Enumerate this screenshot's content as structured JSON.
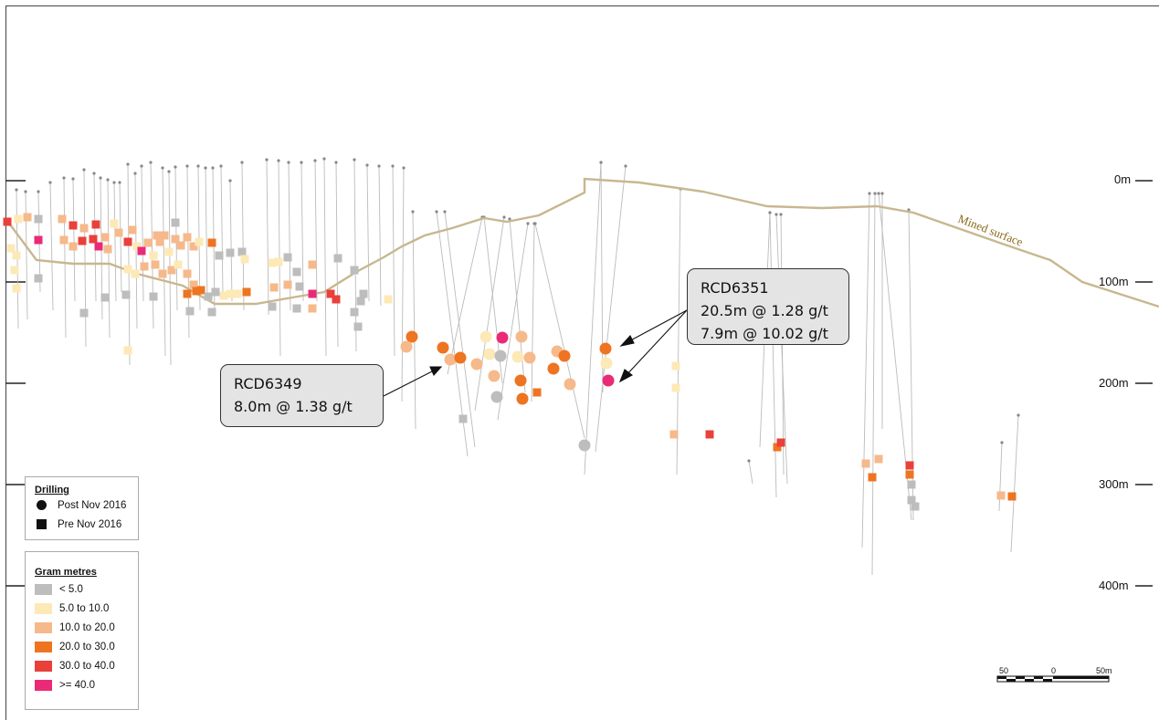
{
  "depth_labels": [
    "0m",
    "100m",
    "200m",
    "300m",
    "400m"
  ],
  "surface_label": "Mined surface",
  "callouts": [
    {
      "hole": "RCD6351",
      "intercepts": [
        "20.5m @ 1.28 g/t",
        "7.9m @ 10.02 g/t"
      ]
    },
    {
      "hole": "RCD6349",
      "intercepts": [
        "8.0m @ 1.38 g/t"
      ]
    }
  ],
  "legend_drilling": {
    "title": "Drilling",
    "items": [
      {
        "symbol": "circle",
        "label": "Post Nov 2016"
      },
      {
        "symbol": "square",
        "label": "Pre Nov 2016"
      }
    ]
  },
  "legend_gram_metres": {
    "title": "Gram metres",
    "items": [
      {
        "label": "< 5.0",
        "color": "#bdbdbd"
      },
      {
        "label": "5.0 to 10.0",
        "color": "#fde9b6"
      },
      {
        "label": "10.0 to 20.0",
        "color": "#f6b98b"
      },
      {
        "label": "20.0 to 30.0",
        "color": "#ee7421"
      },
      {
        "label": "30.0 to 40.0",
        "color": "#e9403a"
      },
      {
        "label": ">= 40.0",
        "color": "#ea2a77"
      }
    ]
  },
  "scale_bar": {
    "left_label": "50",
    "mid_label": "0",
    "right_label": "50m"
  },
  "colors": {
    "surface_line": "#c8b78f",
    "surface_text": "#8a6a1a",
    "drill_trace": "#bbbbbb",
    "frame": "#444444"
  }
}
